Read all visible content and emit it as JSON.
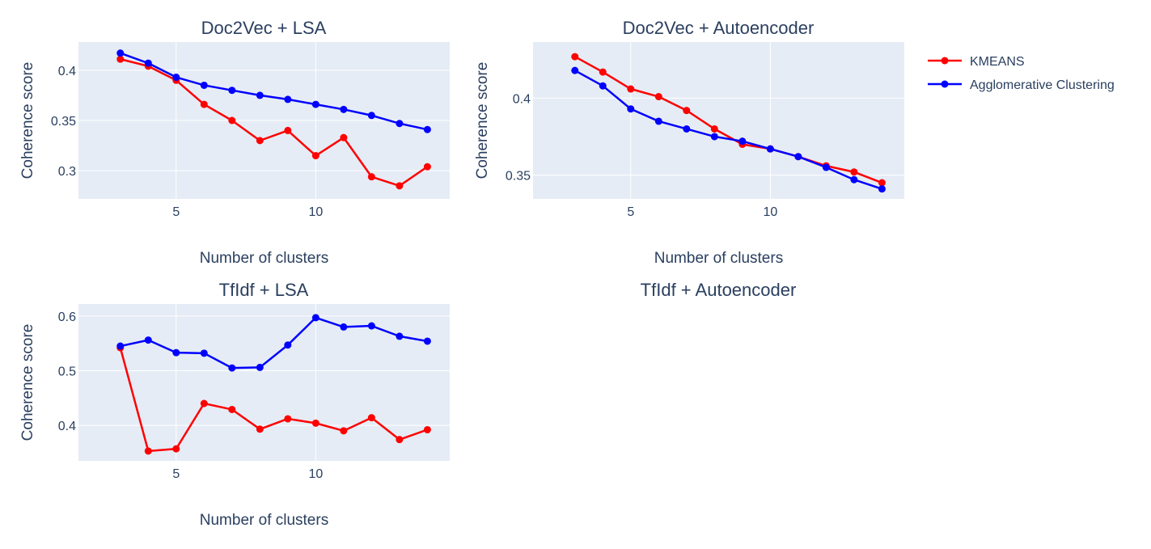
{
  "colors": {
    "plot_bg": "#e5ecf6",
    "grid": "#ffffff",
    "text": "#2a3f5f",
    "kmeans": "#ff0000",
    "agglomerative": "#0000ff"
  },
  "legend": {
    "placement": "top-right",
    "items": [
      {
        "name": "KMEANS",
        "color": "#ff0000"
      },
      {
        "name": "Agglomerative Clustering",
        "color": "#0000ff"
      }
    ]
  },
  "chart_data": [
    {
      "type": "line",
      "title": "Doc2Vec + LSA",
      "xlabel": "Number of clusters",
      "ylabel": "Coherence score",
      "x": [
        3,
        4,
        5,
        6,
        7,
        8,
        9,
        10,
        11,
        12,
        13,
        14
      ],
      "xlim": [
        1.5,
        14.8
      ],
      "ylim": [
        0.272,
        0.428
      ],
      "xticks": [
        5,
        10
      ],
      "yticks": [
        0.3,
        0.35,
        0.4
      ],
      "ytick_labels": [
        "0.3",
        "0.35",
        "0.4"
      ],
      "grid": true,
      "series": [
        {
          "name": "KMEANS",
          "color": "#ff0000",
          "values": [
            0.411,
            0.404,
            0.39,
            0.366,
            0.35,
            0.33,
            0.34,
            0.315,
            0.333,
            0.294,
            0.285,
            0.304
          ]
        },
        {
          "name": "Agglomerative Clustering",
          "color": "#0000ff",
          "values": [
            0.417,
            0.407,
            0.393,
            0.385,
            0.38,
            0.375,
            0.371,
            0.366,
            0.361,
            0.355,
            0.347,
            0.341
          ]
        }
      ]
    },
    {
      "type": "line",
      "title": "Doc2Vec + Autoencoder",
      "xlabel": "Number of clusters",
      "ylabel": "Coherence score",
      "x": [
        3,
        4,
        5,
        6,
        7,
        8,
        9,
        10,
        11,
        12,
        13,
        14
      ],
      "xlim": [
        1.5,
        14.8
      ],
      "ylim": [
        0.3345,
        0.4365
      ],
      "xticks": [
        5,
        10
      ],
      "yticks": [
        0.35,
        0.4
      ],
      "ytick_labels": [
        "0.35",
        "0.4"
      ],
      "grid": true,
      "series": [
        {
          "name": "KMEANS",
          "color": "#ff0000",
          "values": [
            0.427,
            0.417,
            0.406,
            0.401,
            0.392,
            0.38,
            0.37,
            0.367,
            0.362,
            0.356,
            0.352,
            0.345
          ]
        },
        {
          "name": "Agglomerative Clustering",
          "color": "#0000ff",
          "values": [
            0.418,
            0.408,
            0.393,
            0.385,
            0.38,
            0.375,
            0.372,
            0.367,
            0.362,
            0.355,
            0.347,
            0.341
          ]
        }
      ]
    },
    {
      "type": "line",
      "title": "TfIdf + LSA",
      "xlabel": "Number of clusters",
      "ylabel": "Coherence score",
      "x": [
        3,
        4,
        5,
        6,
        7,
        8,
        9,
        10,
        11,
        12,
        13,
        14
      ],
      "xlim": [
        1.5,
        14.8
      ],
      "ylim": [
        0.335,
        0.622
      ],
      "xticks": [
        5,
        10
      ],
      "yticks": [
        0.4,
        0.5,
        0.6
      ],
      "ytick_labels": [
        "0.4",
        "0.5",
        "0.6"
      ],
      "grid": true,
      "series": [
        {
          "name": "KMEANS",
          "color": "#ff0000",
          "values": [
            0.542,
            0.353,
            0.357,
            0.44,
            0.429,
            0.393,
            0.412,
            0.404,
            0.39,
            0.414,
            0.374,
            0.392
          ]
        },
        {
          "name": "Agglomerative Clustering",
          "color": "#0000ff",
          "values": [
            0.545,
            0.556,
            0.533,
            0.532,
            0.505,
            0.506,
            0.547,
            0.597,
            0.58,
            0.582,
            0.563,
            0.554
          ]
        }
      ]
    },
    {
      "type": "line",
      "title": "TfIdf + Autoencoder",
      "series": []
    }
  ]
}
